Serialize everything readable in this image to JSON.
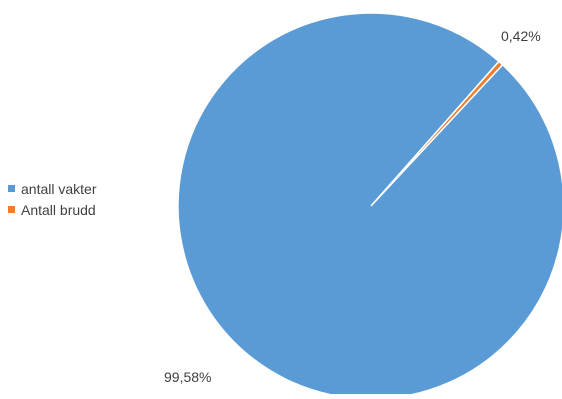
{
  "chart_data": {
    "type": "pie",
    "title": "",
    "categories": [
      "antall vakter",
      "Antall brudd"
    ],
    "values": [
      99.58,
      0.42
    ],
    "data_labels": [
      "99,58%",
      "0,42%"
    ],
    "colors": [
      "#5b9bd5",
      "#ed7d31"
    ],
    "legend_position": "left"
  },
  "legend": {
    "items": [
      {
        "label": "antall vakter",
        "color": "#5b9bd5"
      },
      {
        "label": "Antall brudd",
        "color": "#ed7d31"
      }
    ]
  }
}
